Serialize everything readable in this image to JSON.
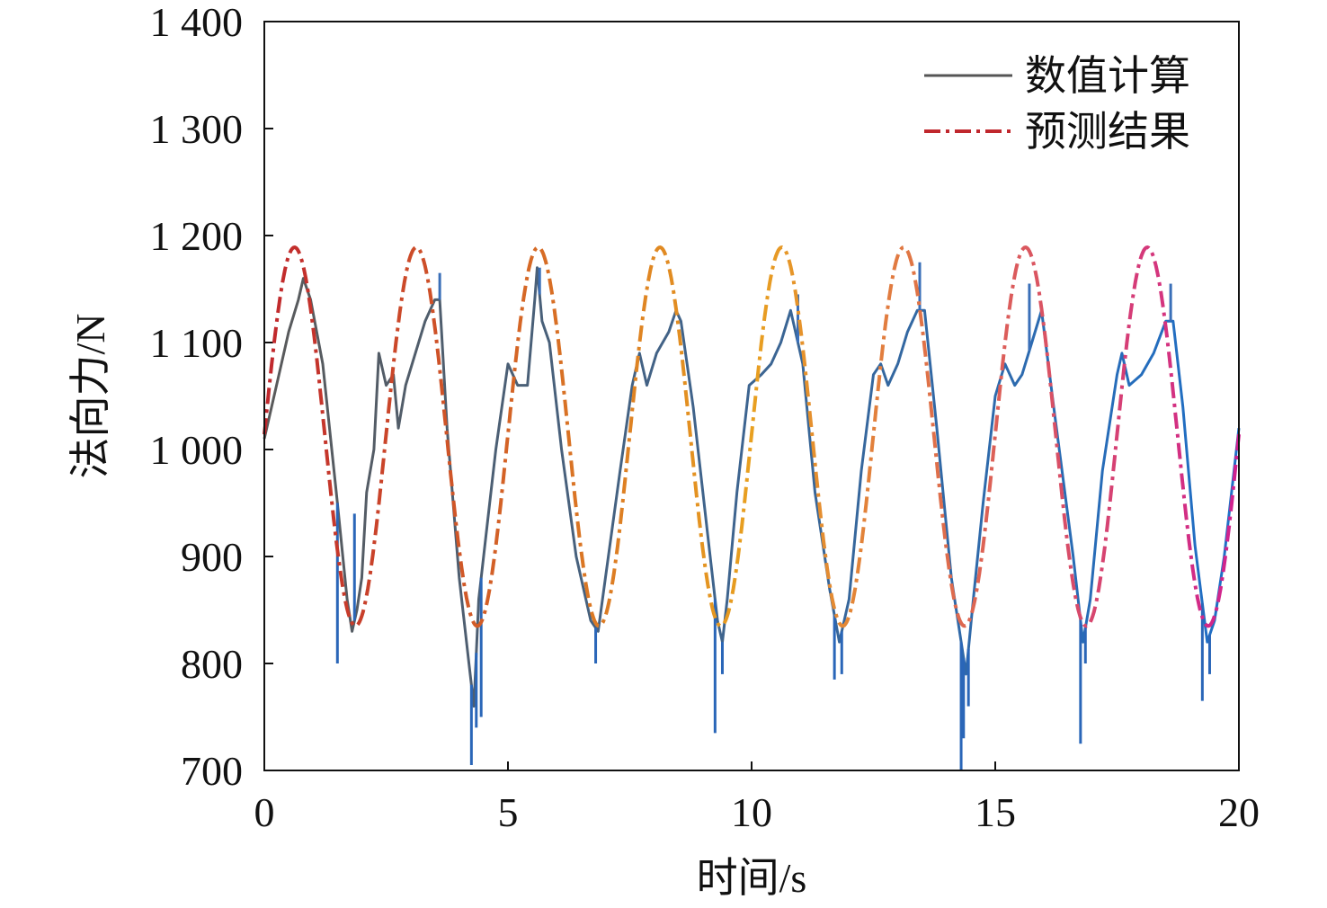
{
  "chart_data": {
    "type": "line",
    "xlabel": "时间/s",
    "ylabel": "法向力/N",
    "xlim": [
      0,
      20
    ],
    "ylim": [
      700,
      1400
    ],
    "x_ticks": [
      0,
      5,
      10,
      15,
      20
    ],
    "x_tick_labels": [
      "0",
      "5",
      "10",
      "15",
      "20"
    ],
    "y_ticks": [
      700,
      800,
      900,
      1000,
      1100,
      1200,
      1300,
      1400
    ],
    "y_tick_labels": [
      "700",
      "800",
      "900",
      "1 000",
      "1 100",
      "1 200",
      "1 300",
      "1 400"
    ],
    "legend_position": "top-right",
    "grid": false,
    "series": [
      {
        "name": "数值计算",
        "style": "solid",
        "color_start": "#5a5a5a",
        "color_end": "#1f6fc7",
        "x": [
          0,
          0.3,
          0.5,
          0.7,
          0.8,
          0.95,
          1.2,
          1.5,
          1.7,
          1.8,
          1.9,
          2.0,
          2.1,
          2.25,
          2.35,
          2.5,
          2.65,
          2.75,
          2.9,
          3.1,
          3.3,
          3.5,
          3.6,
          3.75,
          4.0,
          4.2,
          4.3,
          4.4,
          4.55,
          4.75,
          5.0,
          5.2,
          5.4,
          5.55,
          5.6,
          5.7,
          5.85,
          6.1,
          6.4,
          6.7,
          6.85,
          7.0,
          7.3,
          7.55,
          7.7,
          7.85,
          8.05,
          8.3,
          8.45,
          8.55,
          8.8,
          9.1,
          9.3,
          9.4,
          9.5,
          9.7,
          9.95,
          10.2,
          10.4,
          10.6,
          10.8,
          11.05,
          11.3,
          11.6,
          11.8,
          12.0,
          12.25,
          12.5,
          12.65,
          12.8,
          13.0,
          13.2,
          13.4,
          13.55,
          13.8,
          14.1,
          14.3,
          14.4,
          14.55,
          14.75,
          15.0,
          15.2,
          15.4,
          15.55,
          15.75,
          15.95,
          16.2,
          16.6,
          16.8,
          16.95,
          17.2,
          17.5,
          17.6,
          17.75,
          18.0,
          18.25,
          18.5,
          18.65,
          18.85,
          19.1,
          19.35,
          19.5,
          19.7,
          20.0
        ],
        "y": [
          1010,
          1070,
          1110,
          1140,
          1160,
          1140,
          1080,
          950,
          860,
          830,
          850,
          880,
          960,
          1000,
          1090,
          1060,
          1070,
          1020,
          1060,
          1090,
          1120,
          1140,
          1140,
          1020,
          880,
          800,
          760,
          860,
          920,
          1000,
          1080,
          1060,
          1060,
          1140,
          1170,
          1120,
          1100,
          1000,
          900,
          840,
          830,
          880,
          980,
          1060,
          1090,
          1060,
          1090,
          1110,
          1130,
          1120,
          1040,
          920,
          840,
          820,
          860,
          960,
          1060,
          1070,
          1080,
          1100,
          1130,
          1080,
          960,
          870,
          820,
          860,
          980,
          1070,
          1080,
          1060,
          1080,
          1110,
          1130,
          1130,
          1020,
          880,
          820,
          790,
          860,
          950,
          1050,
          1080,
          1060,
          1070,
          1100,
          1130,
          1040,
          900,
          820,
          860,
          980,
          1070,
          1090,
          1060,
          1070,
          1090,
          1120,
          1120,
          1040,
          910,
          820,
          840,
          900,
          1020
        ],
        "spike_x": [
          1.5,
          1.85,
          4.25,
          4.35,
          4.45,
          6.8,
          9.25,
          9.4,
          11.7,
          11.85,
          14.3,
          14.35,
          14.45,
          16.75,
          16.85,
          19.25,
          19.4
        ],
        "spike_y": [
          800,
          940,
          705,
          740,
          750,
          800,
          735,
          790,
          785,
          790,
          700,
          730,
          760,
          725,
          800,
          765,
          790
        ],
        "peak_spike_x": [
          3.6,
          5.65,
          10.95,
          13.45,
          15.7,
          18.6
        ],
        "peak_spike_y": [
          1165,
          1170,
          1145,
          1175,
          1155,
          1155
        ]
      },
      {
        "name": "预测结果",
        "style": "dash-dot",
        "color_start": "#c0272d",
        "color_mid": "#e8a020",
        "color_end": "#d02090",
        "period": 2.5,
        "mean": 1012,
        "amplitude": 177,
        "peak_time": 0.62
      }
    ]
  }
}
